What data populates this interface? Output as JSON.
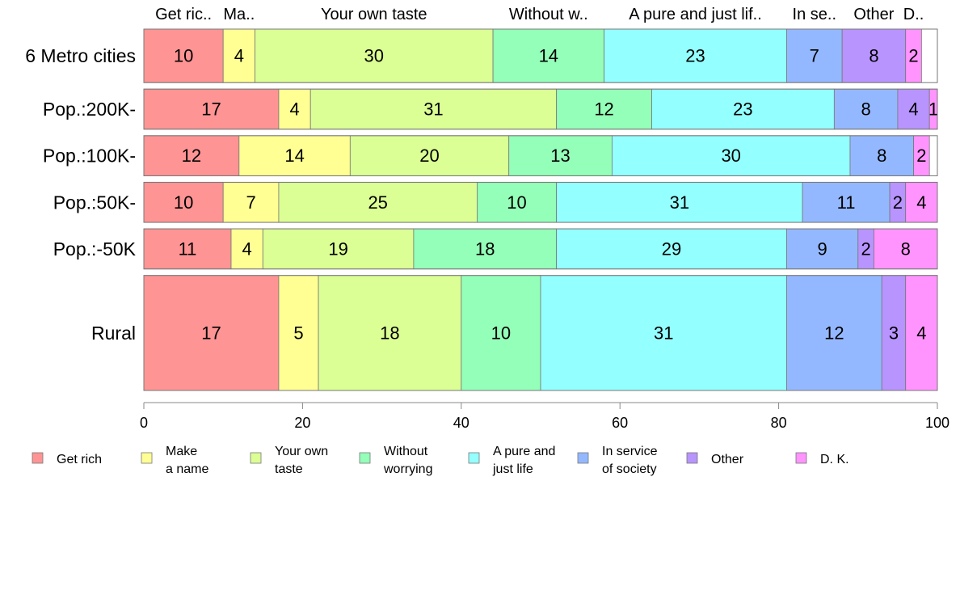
{
  "chart_data": {
    "type": "bar",
    "orientation": "horizontal",
    "stacked": true,
    "categories": [
      "6 Metro cities",
      "Pop.:200K-",
      "Pop.:100K-",
      "Pop.:50K-",
      "Pop.:-50K",
      "Rural"
    ],
    "relative_widths": [
      1.0,
      0.75,
      0.75,
      0.75,
      0.75,
      2.15
    ],
    "series": [
      {
        "name": "Get rich",
        "legend_lines": [
          "Get rich"
        ],
        "top_label": "Get ric..",
        "color": "#FF9494",
        "values": [
          10,
          17,
          12,
          10,
          11,
          17
        ]
      },
      {
        "name": "Make a name",
        "legend_lines": [
          "Make",
          "a name"
        ],
        "top_label": "Ma..",
        "color": "#FFFF94",
        "values": [
          4,
          4,
          14,
          7,
          4,
          5
        ]
      },
      {
        "name": "Your own taste",
        "legend_lines": [
          "Your own",
          "taste"
        ],
        "top_label": "Your own taste",
        "color": "#DBFF94",
        "values": [
          30,
          31,
          20,
          25,
          19,
          18
        ]
      },
      {
        "name": "Without worrying",
        "legend_lines": [
          "Without",
          "worrying"
        ],
        "top_label": "Without w..",
        "color": "#94FFB8",
        "values": [
          14,
          12,
          13,
          10,
          18,
          10
        ]
      },
      {
        "name": "A pure and just life",
        "legend_lines": [
          "A pure and",
          "just life"
        ],
        "top_label": "A pure and just lif..",
        "color": "#94FFFF",
        "values": [
          23,
          23,
          30,
          31,
          29,
          31
        ]
      },
      {
        "name": "In service of society",
        "legend_lines": [
          "In service",
          "of society"
        ],
        "top_label": "In se..",
        "color": "#94B8FF",
        "values": [
          7,
          8,
          8,
          11,
          9,
          12
        ]
      },
      {
        "name": "Other",
        "legend_lines": [
          "Other"
        ],
        "top_label": "Other",
        "color": "#B894FF",
        "values": [
          8,
          4,
          0,
          2,
          2,
          3
        ]
      },
      {
        "name": "D. K.",
        "legend_lines": [
          "D. K."
        ],
        "top_label": "D..",
        "color": "#FF94FF",
        "values": [
          2,
          1,
          2,
          4,
          8,
          4
        ]
      }
    ],
    "xlim": [
      0,
      100
    ],
    "xticks": [
      0,
      20,
      40,
      60,
      80,
      100
    ],
    "legend_position": "bottom",
    "grid": false
  }
}
